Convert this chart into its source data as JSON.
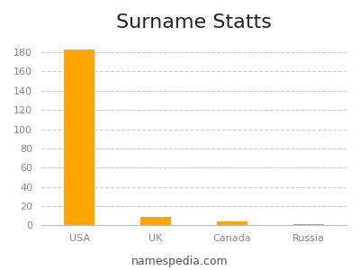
{
  "title": "Surname Statts",
  "categories": [
    "USA",
    "UK",
    "Canada",
    "Russia"
  ],
  "values": [
    183,
    9,
    4,
    1
  ],
  "bar_color": "#FFA500",
  "ylim": [
    0,
    195
  ],
  "yticks": [
    0,
    20,
    40,
    60,
    80,
    100,
    120,
    140,
    160,
    180
  ],
  "background_color": "#ffffff",
  "grid_color": "#cccccc",
  "footer_text": "namespedia.com",
  "title_fontsize": 16,
  "tick_fontsize": 8,
  "footer_fontsize": 9,
  "bar_width": 0.4
}
